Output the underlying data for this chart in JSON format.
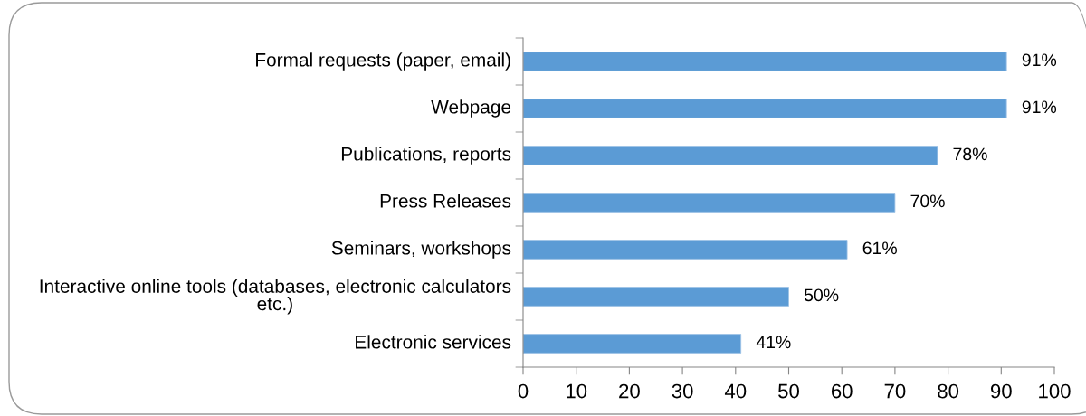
{
  "chart_data": {
    "type": "bar",
    "orientation": "horizontal",
    "categories": [
      "Formal requests (paper, email)",
      "Webpage",
      "Publications, reports",
      "Press Releases",
      "Seminars, workshops",
      "Interactive online tools (databases, electronic calculators etc.)",
      "Electronic services"
    ],
    "values": [
      91,
      91,
      78,
      70,
      61,
      50,
      41
    ],
    "color": "#5b9bd5",
    "value_labels": [
      "91%",
      "91%",
      "78%",
      "70%",
      "61%",
      "50%",
      "41%"
    ],
    "xlim": [
      0,
      100
    ],
    "xticks": [
      0,
      10,
      20,
      30,
      40,
      50,
      60,
      70,
      80,
      90,
      100
    ],
    "grid": false
  }
}
